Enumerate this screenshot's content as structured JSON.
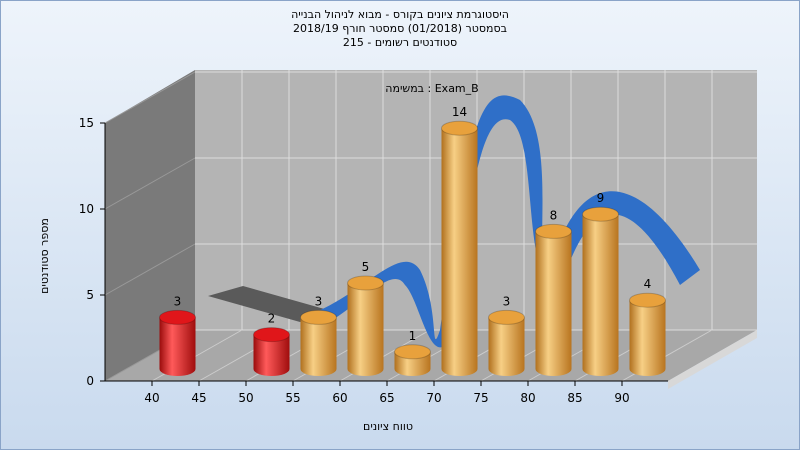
{
  "chart_data": {
    "type": "histogram",
    "title": [
      "היסטוגרמת ציונים בקורס - מבוא לניהול הבנייה",
      "בסמסטר  (01/2018)  סמסטר חורף 2018/19",
      "סטודנטים רשומים - 215"
    ],
    "annotation": "במשימה : Exam_B",
    "x_label": "טווח ציונים",
    "y_label": "מספר סטודנטים",
    "bins": [
      40,
      45,
      50,
      55,
      60,
      65,
      70,
      75,
      80,
      85,
      90,
      null
    ],
    "counts": [
      3,
      0,
      2,
      3,
      5,
      1,
      14,
      3,
      8,
      9,
      4
    ],
    "colors": [
      "#e0161a",
      "#e0161a",
      "#e0161a",
      "#e8a13c",
      "#e8a13c",
      "#e8a13c",
      "#e8a13c",
      "#e8a13c",
      "#e8a13c",
      "#e8a13c",
      "#e8a13c"
    ],
    "ylim": [
      0,
      15
    ],
    "yticks": [
      0,
      5,
      10,
      15
    ],
    "grid": true
  }
}
